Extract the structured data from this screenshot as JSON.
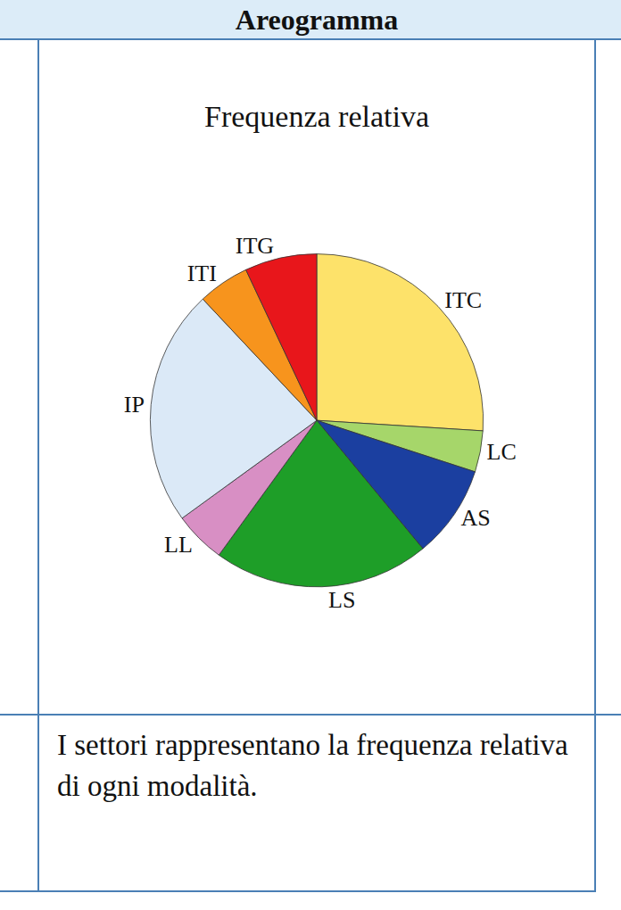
{
  "header": "Areogramma",
  "chart_data": {
    "type": "pie",
    "title": "Frequenza relativa",
    "categories": [
      "ITC",
      "LC",
      "AS",
      "LS",
      "LL",
      "IP",
      "ITI",
      "ITG"
    ],
    "values": [
      26,
      4,
      9,
      21,
      5,
      23,
      5,
      7
    ],
    "colors": [
      "#fde26a",
      "#a6d66a",
      "#1b3fa0",
      "#1e9e28",
      "#d88fc4",
      "#dbe9f7",
      "#f7941d",
      "#e8161b"
    ]
  },
  "caption": "I settori rappresentano la frequenza relativa di ogni modalità."
}
